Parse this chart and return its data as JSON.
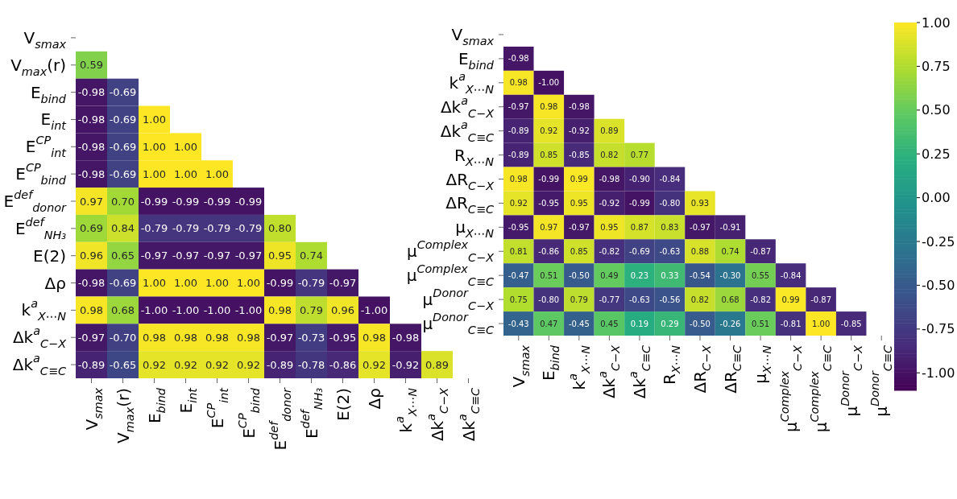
{
  "chart_data": [
    {
      "type": "heatmap",
      "categories": [
        "V$_{smax}$",
        "V$_{max}$(r)",
        "E$_{bind}$",
        "E$_{int}$",
        "E$^{CP}$$_{int}$",
        "E$^{CP}$$_{bind}$",
        "E$^{def}$$_{donor}$",
        "E$^{def}$$_{NH₃}$",
        "E(2)",
        "Δρ",
        "k$^{a}$$_{X⋯N}$",
        "Δk$^{a}$$_{C−X}$",
        "Δk$^{a}$$_{C≡C}$"
      ],
      "y_categories": [
        "V$_{smax}$",
        "V$_{max}$(r)",
        "E$_{bind}$",
        "E$_{int}$",
        "E$^{CP}$$_{int}$",
        "E$^{CP}$$_{bind}$",
        "E$^{def}$$_{donor}$",
        "E$^{def}$$_{NH₃}$",
        "E(2)",
        "Δρ",
        "k$^{a}$$_{X⋯N}$",
        "Δk$^{a}$$_{C−X}$",
        "Δk$^{a}$$_{C≡C}$"
      ],
      "cells": [
        [
          null,
          null,
          null,
          null,
          null,
          null,
          null,
          null,
          null,
          null,
          null,
          null,
          null
        ],
        [
          0.59,
          null,
          null,
          null,
          null,
          null,
          null,
          null,
          null,
          null,
          null,
          null,
          null
        ],
        [
          -0.98,
          -0.69,
          null,
          null,
          null,
          null,
          null,
          null,
          null,
          null,
          null,
          null,
          null
        ],
        [
          -0.98,
          -0.69,
          1.0,
          null,
          null,
          null,
          null,
          null,
          null,
          null,
          null,
          null,
          null
        ],
        [
          -0.98,
          -0.69,
          1.0,
          1.0,
          null,
          null,
          null,
          null,
          null,
          null,
          null,
          null,
          null
        ],
        [
          -0.98,
          -0.69,
          1.0,
          1.0,
          1.0,
          null,
          null,
          null,
          null,
          null,
          null,
          null,
          null
        ],
        [
          0.97,
          0.7,
          -0.99,
          -0.99,
          -0.99,
          -0.99,
          null,
          null,
          null,
          null,
          null,
          null,
          null
        ],
        [
          0.69,
          0.84,
          -0.79,
          -0.79,
          -0.79,
          -0.79,
          0.8,
          null,
          null,
          null,
          null,
          null,
          null
        ],
        [
          0.96,
          0.65,
          -0.97,
          -0.97,
          -0.97,
          -0.97,
          0.95,
          0.74,
          null,
          null,
          null,
          null,
          null
        ],
        [
          -0.98,
          -0.69,
          1.0,
          1.0,
          1.0,
          1.0,
          -0.99,
          -0.79,
          -0.97,
          null,
          null,
          null,
          null
        ],
        [
          0.98,
          0.68,
          -1.0,
          -1.0,
          -1.0,
          -1.0,
          0.98,
          0.79,
          0.96,
          -1.0,
          null,
          null,
          null
        ],
        [
          -0.97,
          -0.7,
          0.98,
          0.98,
          0.98,
          0.98,
          -0.97,
          -0.73,
          -0.95,
          0.98,
          -0.98,
          null,
          null
        ],
        [
          -0.89,
          -0.65,
          0.92,
          0.92,
          0.92,
          0.92,
          -0.89,
          -0.78,
          -0.86,
          0.92,
          -0.92,
          0.89,
          null
        ]
      ],
      "cell_labels": [
        [
          null,
          null,
          null,
          null,
          null,
          null,
          null,
          null,
          null,
          null,
          null,
          null,
          null
        ],
        [
          "0.59",
          null,
          null,
          null,
          null,
          null,
          null,
          null,
          null,
          null,
          null,
          null,
          null
        ],
        [
          "-0.98",
          "-0.69",
          null,
          null,
          null,
          null,
          null,
          null,
          null,
          null,
          null,
          null,
          null
        ],
        [
          "-0.98",
          "-0.69",
          "1.00",
          null,
          null,
          null,
          null,
          null,
          null,
          null,
          null,
          null,
          null
        ],
        [
          "-0.98",
          "-0.69",
          "1.00",
          "1.00",
          null,
          null,
          null,
          null,
          null,
          null,
          null,
          null,
          null
        ],
        [
          "-0.98",
          "-0.69",
          "1.00",
          "1.00",
          "1.00",
          null,
          null,
          null,
          null,
          null,
          null,
          null,
          null
        ],
        [
          "0.97",
          "0.70",
          "-0.99",
          "-0.99",
          "-0.99",
          "-0.99",
          null,
          null,
          null,
          null,
          null,
          null,
          null
        ],
        [
          "0.69",
          "0.84",
          "-0.79",
          "-0.79",
          "-0.79",
          "-0.79",
          "0.80",
          null,
          null,
          null,
          null,
          null,
          null
        ],
        [
          "0.96",
          "0.65",
          "-0.97",
          "-0.97",
          "-0.97",
          "-0.97",
          "0.95",
          "0.74",
          null,
          null,
          null,
          null,
          null
        ],
        [
          "-0.98",
          "-0.69",
          "1.00",
          "1.00",
          "1.00",
          "1.00",
          "-0.99",
          "-0.79",
          "-0.97",
          null,
          null,
          null,
          null
        ],
        [
          "0.98",
          "0.68",
          "-1.00",
          "-1.00",
          "-1.00",
          "-1.00",
          "0.98",
          "0.79",
          "0.96",
          "-1.00",
          null,
          null,
          null
        ],
        [
          "-0.97",
          "-0.70",
          "0.98",
          "0.98",
          "0.98",
          "0.98",
          "-0.97",
          "-0.73",
          "-0.95",
          "0.98",
          "-0.98",
          null,
          null
        ],
        [
          "-0.89",
          "-0.65",
          "0.92",
          "0.92",
          "0.92",
          "0.92",
          "-0.89",
          "-0.78",
          "-0.86",
          "0.92",
          "-0.92",
          "0.89",
          null
        ]
      ]
    },
    {
      "type": "heatmap",
      "categories": [
        "V$_{smax}$",
        "E$_{bind}$",
        "k$^{a}$$_{X⋯N}$",
        "Δk$^{a}$$_{C−X}$",
        "Δk$^{a}$$_{C≡C}$",
        "R$_{X⋯N}$",
        "ΔR$_{C−X}$",
        "ΔR$_{C≡C}$",
        "μ$_{X⋯N}$",
        "μ$^{Complex}$$_{C−X}$",
        "μ$^{Complex}$$_{C≡C}$",
        "μ$^{Donor}$$_{C−X}$",
        "μ$^{Donor}$$_{C≡C}$"
      ],
      "y_categories": [
        "V$_{smax}$",
        "E$_{bind}$",
        "k$^{a}$$_{X⋯N}$",
        "Δk$^{a}$$_{C−X}$",
        "Δk$^{a}$$_{C≡C}$",
        "R$_{X⋯N}$",
        "ΔR$_{C−X}$",
        "ΔR$_{C≡C}$",
        "μ$_{X⋯N}$",
        "μ$^{Complex}$$_{C−X}$",
        "μ$^{Complex}$$_{C≡C}$",
        "μ$^{Donor}$$_{C−X}$",
        "μ$^{Donor}$$_{C≡C}$"
      ],
      "clim": [
        -1.1,
        1.0
      ],
      "cticks": [
        {
          "value": 1.0,
          "label": "1.00"
        },
        {
          "value": 0.75,
          "label": "0.75"
        },
        {
          "value": 0.5,
          "label": "0.50"
        },
        {
          "value": 0.25,
          "label": "0.25"
        },
        {
          "value": 0,
          "label": "0.00"
        },
        {
          "value": -0.25,
          "label": "-0.25"
        },
        {
          "value": -0.5,
          "label": "-0.50"
        },
        {
          "value": -0.75,
          "label": "-0.75"
        },
        {
          "value": -1.0,
          "label": "-1.00"
        }
      ],
      "cells": [
        [
          null,
          null,
          null,
          null,
          null,
          null,
          null,
          null,
          null,
          null,
          null,
          null,
          null
        ],
        [
          -0.98,
          null,
          null,
          null,
          null,
          null,
          null,
          null,
          null,
          null,
          null,
          null,
          null
        ],
        [
          0.98,
          -1.0,
          null,
          null,
          null,
          null,
          null,
          null,
          null,
          null,
          null,
          null,
          null
        ],
        [
          -0.97,
          0.98,
          -0.98,
          null,
          null,
          null,
          null,
          null,
          null,
          null,
          null,
          null,
          null
        ],
        [
          -0.89,
          0.92,
          -0.92,
          0.89,
          null,
          null,
          null,
          null,
          null,
          null,
          null,
          null,
          null
        ],
        [
          -0.89,
          0.85,
          -0.85,
          0.82,
          0.77,
          null,
          null,
          null,
          null,
          null,
          null,
          null,
          null
        ],
        [
          0.98,
          -0.99,
          0.99,
          -0.98,
          -0.9,
          -0.84,
          null,
          null,
          null,
          null,
          null,
          null,
          null
        ],
        [
          0.92,
          -0.95,
          0.95,
          -0.92,
          -0.99,
          -0.8,
          0.93,
          null,
          null,
          null,
          null,
          null,
          null
        ],
        [
          -0.95,
          0.97,
          -0.97,
          0.95,
          0.87,
          0.83,
          -0.97,
          -0.91,
          null,
          null,
          null,
          null,
          null
        ],
        [
          0.81,
          -0.86,
          0.85,
          -0.82,
          -0.69,
          -0.63,
          0.88,
          0.74,
          -0.87,
          null,
          null,
          null,
          null
        ],
        [
          -0.47,
          0.51,
          -0.5,
          0.49,
          0.23,
          0.33,
          -0.54,
          -0.3,
          0.55,
          -0.84,
          null,
          null,
          null
        ],
        [
          0.75,
          -0.8,
          0.79,
          -0.77,
          -0.63,
          -0.56,
          0.82,
          0.68,
          -0.82,
          0.99,
          -0.87,
          null,
          null
        ],
        [
          -0.43,
          0.47,
          -0.45,
          0.45,
          0.19,
          0.29,
          -0.5,
          -0.26,
          0.51,
          -0.81,
          1.0,
          -0.85,
          null
        ]
      ],
      "cell_labels": [
        [
          null,
          null,
          null,
          null,
          null,
          null,
          null,
          null,
          null,
          null,
          null,
          null,
          null
        ],
        [
          "-0.98",
          null,
          null,
          null,
          null,
          null,
          null,
          null,
          null,
          null,
          null,
          null,
          null
        ],
        [
          "0.98",
          "-1.00",
          null,
          null,
          null,
          null,
          null,
          null,
          null,
          null,
          null,
          null,
          null
        ],
        [
          "-0.97",
          "0.98",
          "-0.98",
          null,
          null,
          null,
          null,
          null,
          null,
          null,
          null,
          null,
          null
        ],
        [
          "-0.89",
          "0.92",
          "-0.92",
          "0.89",
          null,
          null,
          null,
          null,
          null,
          null,
          null,
          null,
          null
        ],
        [
          "-0.89",
          "0.85",
          "-0.85",
          "0.82",
          "0.77",
          null,
          null,
          null,
          null,
          null,
          null,
          null,
          null
        ],
        [
          "0.98",
          "-0.99",
          "0.99",
          "-0.98",
          "-0.90",
          "-0.84",
          null,
          null,
          null,
          null,
          null,
          null,
          null
        ],
        [
          "0.92",
          "-0.95",
          "0.95",
          "-0.92",
          "-0.99",
          "-0.80",
          "0.93",
          null,
          null,
          null,
          null,
          null,
          null
        ],
        [
          "-0.95",
          "0.97",
          "-0.97",
          "0.95",
          "0.87",
          "0.83",
          "-0.97",
          "-0.91",
          null,
          null,
          null,
          null,
          null
        ],
        [
          "0.81",
          "-0.86",
          "0.85",
          "-0.82",
          "-0.69",
          "-0.63",
          "0.88",
          "0.74",
          "-0.87",
          null,
          null,
          null,
          null
        ],
        [
          "-0.47",
          "0.51",
          "-0.50",
          "0.49",
          "0.23",
          "0.33",
          "-0.54",
          "-0.30",
          "0.55",
          "-0.84",
          null,
          null,
          null
        ],
        [
          "0.75",
          "-0.80",
          "0.79",
          "-0.77",
          "-0.63",
          "-0.56",
          "0.82",
          "0.68",
          "-0.82",
          "0.99",
          "-0.87",
          null,
          null
        ],
        [
          "-0.43",
          "0.47",
          "-0.45",
          "0.45",
          "0.19",
          "0.29",
          "-0.50",
          "-0.26",
          "0.51",
          "-0.81",
          "1.00",
          "-0.85",
          null
        ]
      ]
    }
  ]
}
